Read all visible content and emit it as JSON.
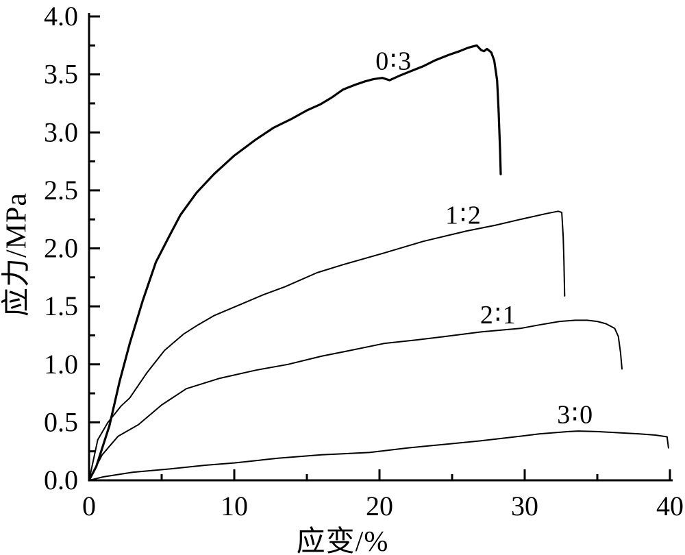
{
  "chart_data": {
    "type": "line",
    "title": "",
    "xlabel": "应变/%",
    "ylabel": "应力/MPa",
    "xlim": [
      0,
      40
    ],
    "ylim": [
      0,
      4.0
    ],
    "grid": false,
    "legend_position": "inline-labels-above-curves",
    "background": "#ffffff",
    "line_color": "#000000",
    "x_ticks": {
      "major": [
        0,
        10,
        20,
        30,
        40
      ],
      "labels": [
        "0",
        "10",
        "20",
        "30",
        "40"
      ],
      "minor": [
        5,
        15,
        25,
        35
      ]
    },
    "y_ticks": {
      "major": [
        0,
        0.5,
        1.0,
        1.5,
        2.0,
        2.5,
        3.0,
        3.5,
        4.0
      ],
      "labels": [
        "0.0",
        "0.5",
        "1.0",
        "1.5",
        "2.0",
        "2.5",
        "3.0",
        "3.5",
        "4.0"
      ],
      "minor": [
        0.25,
        0.75,
        1.25,
        1.75,
        2.25,
        2.75,
        3.25,
        3.75
      ]
    },
    "series": [
      {
        "name": "0∶3",
        "label_x": 21.0,
        "label_y": 3.62,
        "stroke_width": 3.2,
        "peak_stress_mpa": 3.75,
        "strain_at_break_pct": 28.3,
        "points": [
          [
            0,
            0
          ],
          [
            0.5,
            0.12
          ],
          [
            1.4,
            0.47
          ],
          [
            2.1,
            0.85
          ],
          [
            2.8,
            1.18
          ],
          [
            3.7,
            1.55
          ],
          [
            4.6,
            1.88
          ],
          [
            5.5,
            2.1
          ],
          [
            6.3,
            2.29
          ],
          [
            7.4,
            2.48
          ],
          [
            8.6,
            2.64
          ],
          [
            10,
            2.8
          ],
          [
            11.5,
            2.94
          ],
          [
            12.7,
            3.04
          ],
          [
            14,
            3.12
          ],
          [
            15,
            3.19
          ],
          [
            15.9,
            3.24
          ],
          [
            16.7,
            3.3
          ],
          [
            17.5,
            3.37
          ],
          [
            18.3,
            3.41
          ],
          [
            19,
            3.44
          ],
          [
            19.6,
            3.46
          ],
          [
            20.2,
            3.47
          ],
          [
            20.7,
            3.45
          ],
          [
            21.4,
            3.49
          ],
          [
            22.2,
            3.53
          ],
          [
            23,
            3.57
          ],
          [
            23.8,
            3.62
          ],
          [
            24.8,
            3.67
          ],
          [
            25.5,
            3.7
          ],
          [
            26.1,
            3.73
          ],
          [
            26.7,
            3.75
          ],
          [
            27,
            3.71
          ],
          [
            27.2,
            3.7
          ],
          [
            27.4,
            3.72
          ],
          [
            27.7,
            3.69
          ],
          [
            27.9,
            3.62
          ],
          [
            28.1,
            3.45
          ],
          [
            28.2,
            3.2
          ],
          [
            28.3,
            2.85
          ],
          [
            28.35,
            2.64
          ]
        ]
      },
      {
        "name": "1∶2",
        "label_x": 25.8,
        "label_y": 2.29,
        "stroke_width": 2,
        "peak_stress_mpa": 2.32,
        "strain_at_break_pct": 32.7,
        "points": [
          [
            0,
            0
          ],
          [
            0.6,
            0.35
          ],
          [
            1.3,
            0.5
          ],
          [
            2.2,
            0.64
          ],
          [
            2.8,
            0.71
          ],
          [
            4,
            0.93
          ],
          [
            5.2,
            1.12
          ],
          [
            6.5,
            1.26
          ],
          [
            7.5,
            1.34
          ],
          [
            8.6,
            1.42
          ],
          [
            10.5,
            1.52
          ],
          [
            12,
            1.6
          ],
          [
            13.5,
            1.67
          ],
          [
            15.7,
            1.79
          ],
          [
            17.5,
            1.86
          ],
          [
            20.3,
            1.96
          ],
          [
            23,
            2.06
          ],
          [
            26,
            2.15
          ],
          [
            28,
            2.2
          ],
          [
            29.7,
            2.25
          ],
          [
            31.5,
            2.3
          ],
          [
            32.3,
            2.32
          ],
          [
            32.55,
            2.31
          ],
          [
            32.65,
            2.1
          ],
          [
            32.7,
            1.9
          ],
          [
            32.75,
            1.59
          ]
        ]
      },
      {
        "name": "2∶1",
        "label_x": 28.2,
        "label_y": 1.43,
        "stroke_width": 2,
        "peak_stress_mpa": 1.38,
        "strain_at_break_pct": 36.7,
        "points": [
          [
            0,
            0
          ],
          [
            0.9,
            0.22
          ],
          [
            2,
            0.38
          ],
          [
            3.4,
            0.48
          ],
          [
            5,
            0.65
          ],
          [
            6.7,
            0.79
          ],
          [
            9,
            0.88
          ],
          [
            11.5,
            0.95
          ],
          [
            13.7,
            1.0
          ],
          [
            16,
            1.07
          ],
          [
            18,
            1.12
          ],
          [
            20.3,
            1.18
          ],
          [
            22.5,
            1.21
          ],
          [
            24.5,
            1.24
          ],
          [
            27,
            1.28
          ],
          [
            29.7,
            1.31
          ],
          [
            31,
            1.34
          ],
          [
            32.4,
            1.37
          ],
          [
            33.5,
            1.38
          ],
          [
            34.3,
            1.38
          ],
          [
            35,
            1.37
          ],
          [
            35.6,
            1.35
          ],
          [
            36.2,
            1.31
          ],
          [
            36.45,
            1.24
          ],
          [
            36.6,
            1.1
          ],
          [
            36.7,
            0.96
          ]
        ]
      },
      {
        "name": "3∶0",
        "label_x": 33.5,
        "label_y": 0.57,
        "stroke_width": 2,
        "peak_stress_mpa": 0.43,
        "strain_at_break_pct": 39.9,
        "points": [
          [
            0,
            0
          ],
          [
            1,
            0.03
          ],
          [
            3,
            0.07
          ],
          [
            5.7,
            0.1
          ],
          [
            8,
            0.13
          ],
          [
            10,
            0.15
          ],
          [
            13,
            0.19
          ],
          [
            16,
            0.22
          ],
          [
            19.3,
            0.24
          ],
          [
            22,
            0.28
          ],
          [
            24.5,
            0.31
          ],
          [
            26.9,
            0.34
          ],
          [
            29,
            0.37
          ],
          [
            31,
            0.4
          ],
          [
            33,
            0.42
          ],
          [
            33.7,
            0.425
          ],
          [
            35,
            0.42
          ],
          [
            36.5,
            0.41
          ],
          [
            37.9,
            0.4
          ],
          [
            39,
            0.39
          ],
          [
            39.8,
            0.375
          ],
          [
            39.85,
            0.33
          ],
          [
            39.9,
            0.28
          ]
        ]
      }
    ]
  }
}
